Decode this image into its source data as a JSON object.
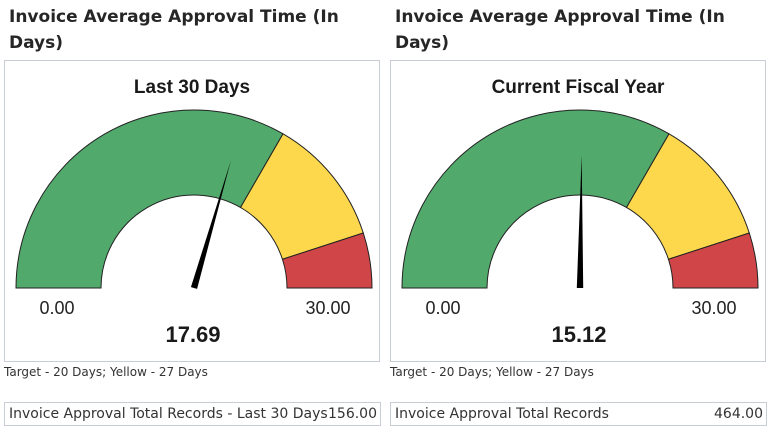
{
  "panels": [
    {
      "title": "Invoice Average Approval Time (In Days)",
      "gauge": {
        "title": "Last 30 Days",
        "min_label": "0.00",
        "max_label": "30.00",
        "value_label": "17.69"
      },
      "caption": "Target - 20 Days; Yellow - 27 Days",
      "records": {
        "label": "Invoice Approval Total Records - Last 30 Days",
        "value": "156.00"
      }
    },
    {
      "title": "Invoice Average Approval Time (In Days)",
      "gauge": {
        "title": "Current Fiscal Year",
        "min_label": "0.00",
        "max_label": "30.00",
        "value_label": "15.12"
      },
      "caption": "Target - 20 Days; Yellow - 27 Days",
      "records": {
        "label": "Invoice Approval Total Records",
        "value": "464.00"
      }
    }
  ],
  "colors": {
    "green": "#52a96c",
    "yellow": "#fdd84c",
    "red": "#d04648",
    "needle": "#000000",
    "border": "#c8ccd4"
  },
  "chart_data": [
    {
      "type": "gauge",
      "title": "Last 30 Days",
      "min": 0,
      "max": 30,
      "value": 17.69,
      "bands": [
        {
          "from": 0,
          "to": 20,
          "color": "green"
        },
        {
          "from": 20,
          "to": 27,
          "color": "yellow"
        },
        {
          "from": 27,
          "to": 30,
          "color": "red"
        }
      ],
      "tick_labels": [
        "0.00",
        "30.00"
      ]
    },
    {
      "type": "gauge",
      "title": "Current Fiscal Year",
      "min": 0,
      "max": 30,
      "value": 15.12,
      "bands": [
        {
          "from": 0,
          "to": 20,
          "color": "green"
        },
        {
          "from": 20,
          "to": 27,
          "color": "yellow"
        },
        {
          "from": 27,
          "to": 30,
          "color": "red"
        }
      ],
      "tick_labels": [
        "0.00",
        "30.00"
      ]
    }
  ]
}
